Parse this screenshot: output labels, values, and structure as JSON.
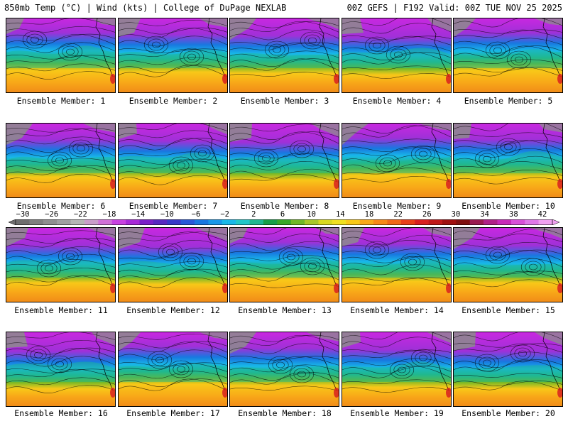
{
  "header": {
    "left_title": "850mb Temp (°C) | Wind (kts) | College of DuPage NEXLAB",
    "right_title": "00Z GEFS | F192 Valid: 00Z TUE NOV 25 2025"
  },
  "members": [
    {
      "label": "Ensemble Member: 1"
    },
    {
      "label": "Ensemble Member: 2"
    },
    {
      "label": "Ensemble Member: 3"
    },
    {
      "label": "Ensemble Member: 4"
    },
    {
      "label": "Ensemble Member: 5"
    },
    {
      "label": "Ensemble Member: 6"
    },
    {
      "label": "Ensemble Member: 7"
    },
    {
      "label": "Ensemble Member: 8"
    },
    {
      "label": "Ensemble Member: 9"
    },
    {
      "label": "Ensemble Member: 10"
    },
    {
      "label": "Ensemble Member: 11"
    },
    {
      "label": "Ensemble Member: 12"
    },
    {
      "label": "Ensemble Member: 13"
    },
    {
      "label": "Ensemble Member: 14"
    },
    {
      "label": "Ensemble Member: 15"
    },
    {
      "label": "Ensemble Member: 16"
    },
    {
      "label": "Ensemble Member: 17"
    },
    {
      "label": "Ensemble Member: 18"
    },
    {
      "label": "Ensemble Member: 19"
    },
    {
      "label": "Ensemble Member: 20"
    }
  ],
  "colorbar": {
    "tick_labels": [
      "−30",
      "−26",
      "−22",
      "−18",
      "−14",
      "−10",
      "−6",
      "−2",
      "2",
      "6",
      "10",
      "14",
      "18",
      "22",
      "26",
      "30",
      "34",
      "38",
      "42"
    ],
    "colors": [
      "#6e6e6e",
      "#7f7f7f",
      "#8f8f8f",
      "#a0a0a0",
      "#b6b6b6",
      "#c99ec9",
      "#d070d8",
      "#c840e0",
      "#a828d8",
      "#7a20c8",
      "#5828c0",
      "#3838c8",
      "#2858d8",
      "#1878e0",
      "#1898e8",
      "#18b8e8",
      "#20c8c8",
      "#20b890",
      "#18a048",
      "#38a828",
      "#70b828",
      "#a8c828",
      "#d8d820",
      "#f0e020",
      "#f8c818",
      "#f8a818",
      "#f88818",
      "#f06818",
      "#e84018",
      "#d82020",
      "#c01818",
      "#a01010",
      "#801010",
      "#9a1a50",
      "#b02088",
      "#c828b8",
      "#d850d8",
      "#e078e8",
      "#f0a0f0"
    ]
  },
  "map_colors": {
    "cold": "#c828e0",
    "cool": "#1878e0",
    "mild": "#20b890",
    "warm": "#f8c818",
    "hot": "#f08818",
    "land_gray": "#8c8c8c"
  }
}
